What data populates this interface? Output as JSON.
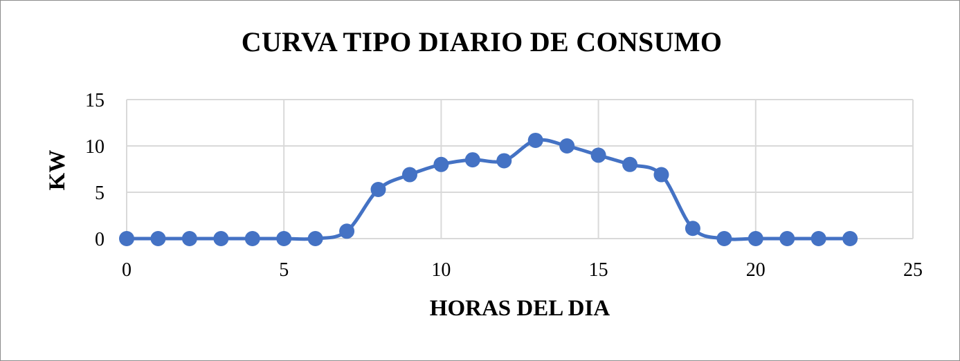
{
  "chart_data": {
    "type": "line",
    "title": "CURVA TIPO DIARIO DE CONSUMO",
    "xlabel": "HORAS DEL DIA",
    "ylabel": "KW",
    "xlim": [
      0,
      25
    ],
    "ylim": [
      0,
      15
    ],
    "x_ticks": [
      0,
      5,
      10,
      15,
      20,
      25
    ],
    "y_ticks": [
      0,
      5,
      10,
      15
    ],
    "grid": true,
    "smooth": true,
    "series_color": "#4472C4",
    "gridline_color": "#d9d9d9",
    "series": [
      {
        "x": [
          0,
          1,
          2,
          3,
          4,
          5,
          6,
          7,
          8,
          9,
          10,
          11,
          12,
          13,
          14,
          15,
          16,
          17,
          18,
          19,
          20,
          21,
          22,
          23
        ],
        "values": [
          0,
          0,
          0,
          0,
          0,
          0,
          0,
          0.8,
          5.3,
          6.9,
          8,
          8.5,
          8.4,
          10.6,
          10,
          9,
          8,
          6.9,
          1.1,
          0,
          0,
          0,
          0,
          0
        ]
      }
    ]
  }
}
